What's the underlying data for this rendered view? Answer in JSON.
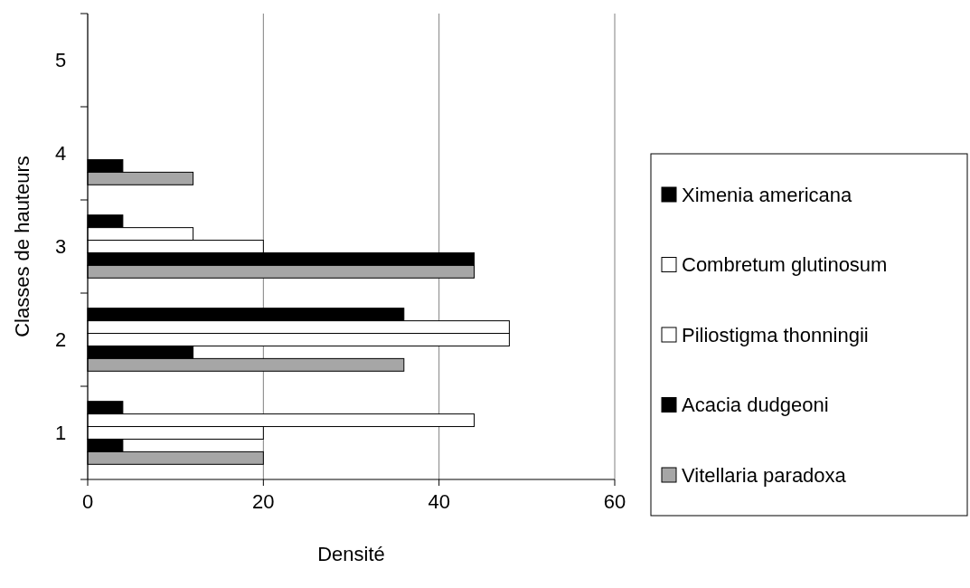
{
  "chart_data": {
    "type": "bar",
    "orientation": "horizontal",
    "xlabel": "Densité",
    "ylabel": "Classes de  hauteurs",
    "categories": [
      "5",
      "4",
      "3",
      "2",
      "1"
    ],
    "series": [
      {
        "name": "Ximenia americana",
        "color": "#000000",
        "values": [
          0,
          0,
          4,
          36,
          4
        ]
      },
      {
        "name": "Combretum glutinosum",
        "color": "#ffffff",
        "values": [
          0,
          0,
          12,
          48,
          44
        ]
      },
      {
        "name": "Piliostigma thonningii",
        "color": "#ffffff",
        "values": [
          0,
          0,
          20,
          48,
          20
        ]
      },
      {
        "name": "Acacia dudgeoni",
        "color": "#000000",
        "values": [
          0,
          4,
          44,
          12,
          4
        ]
      },
      {
        "name": "Vitellaria paradoxa",
        "color": "#a6a6a6",
        "values": [
          0,
          12,
          44,
          36,
          20
        ]
      }
    ],
    "xlim": [
      0,
      60
    ],
    "xticks": [
      0,
      20,
      40,
      60
    ],
    "grid": "x",
    "legend": "right"
  }
}
